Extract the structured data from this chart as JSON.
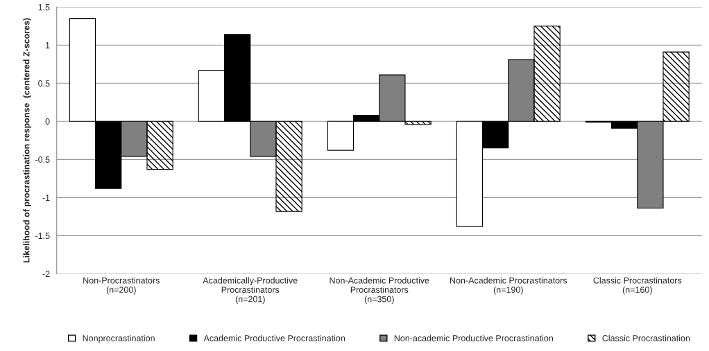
{
  "chart_data": {
    "type": "bar",
    "ylabel": "Likelihood of procrastination response  (centered Z-scores)",
    "categories": [
      "Non-Procrastinators\n(n=200)",
      "Academically-Productive\nProcrastinators\n(n=201)",
      "Non-Academic Productive\nProcrastinators\n(n=350)",
      "Non-Academic Procrastinators\n(n=190)",
      "Classic Procrastinators\n(n=160)"
    ],
    "series": [
      {
        "name": "Nonprocrastination",
        "color": "#ffffff",
        "values": [
          1.35,
          0.67,
          -0.38,
          -1.38,
          -0.01
        ]
      },
      {
        "name": "Academic Productive Procrastination",
        "color": "#000000",
        "values": [
          -0.88,
          1.14,
          0.08,
          -0.35,
          -0.09
        ]
      },
      {
        "name": "Non-academic Productive Procrastination",
        "color": "#808080",
        "values": [
          -0.46,
          -0.46,
          0.61,
          0.81,
          -1.14
        ]
      },
      {
        "name": "Classic Procrastination",
        "color": "#000000",
        "values": [
          -0.63,
          -1.18,
          -0.04,
          1.25,
          0.91
        ]
      }
    ],
    "ylim": [
      -2,
      1.5
    ],
    "yticks": [
      -2,
      -1.5,
      -1,
      -0.5,
      0,
      0.5,
      1,
      1.5
    ],
    "grid": "y",
    "legend": "bottom"
  }
}
